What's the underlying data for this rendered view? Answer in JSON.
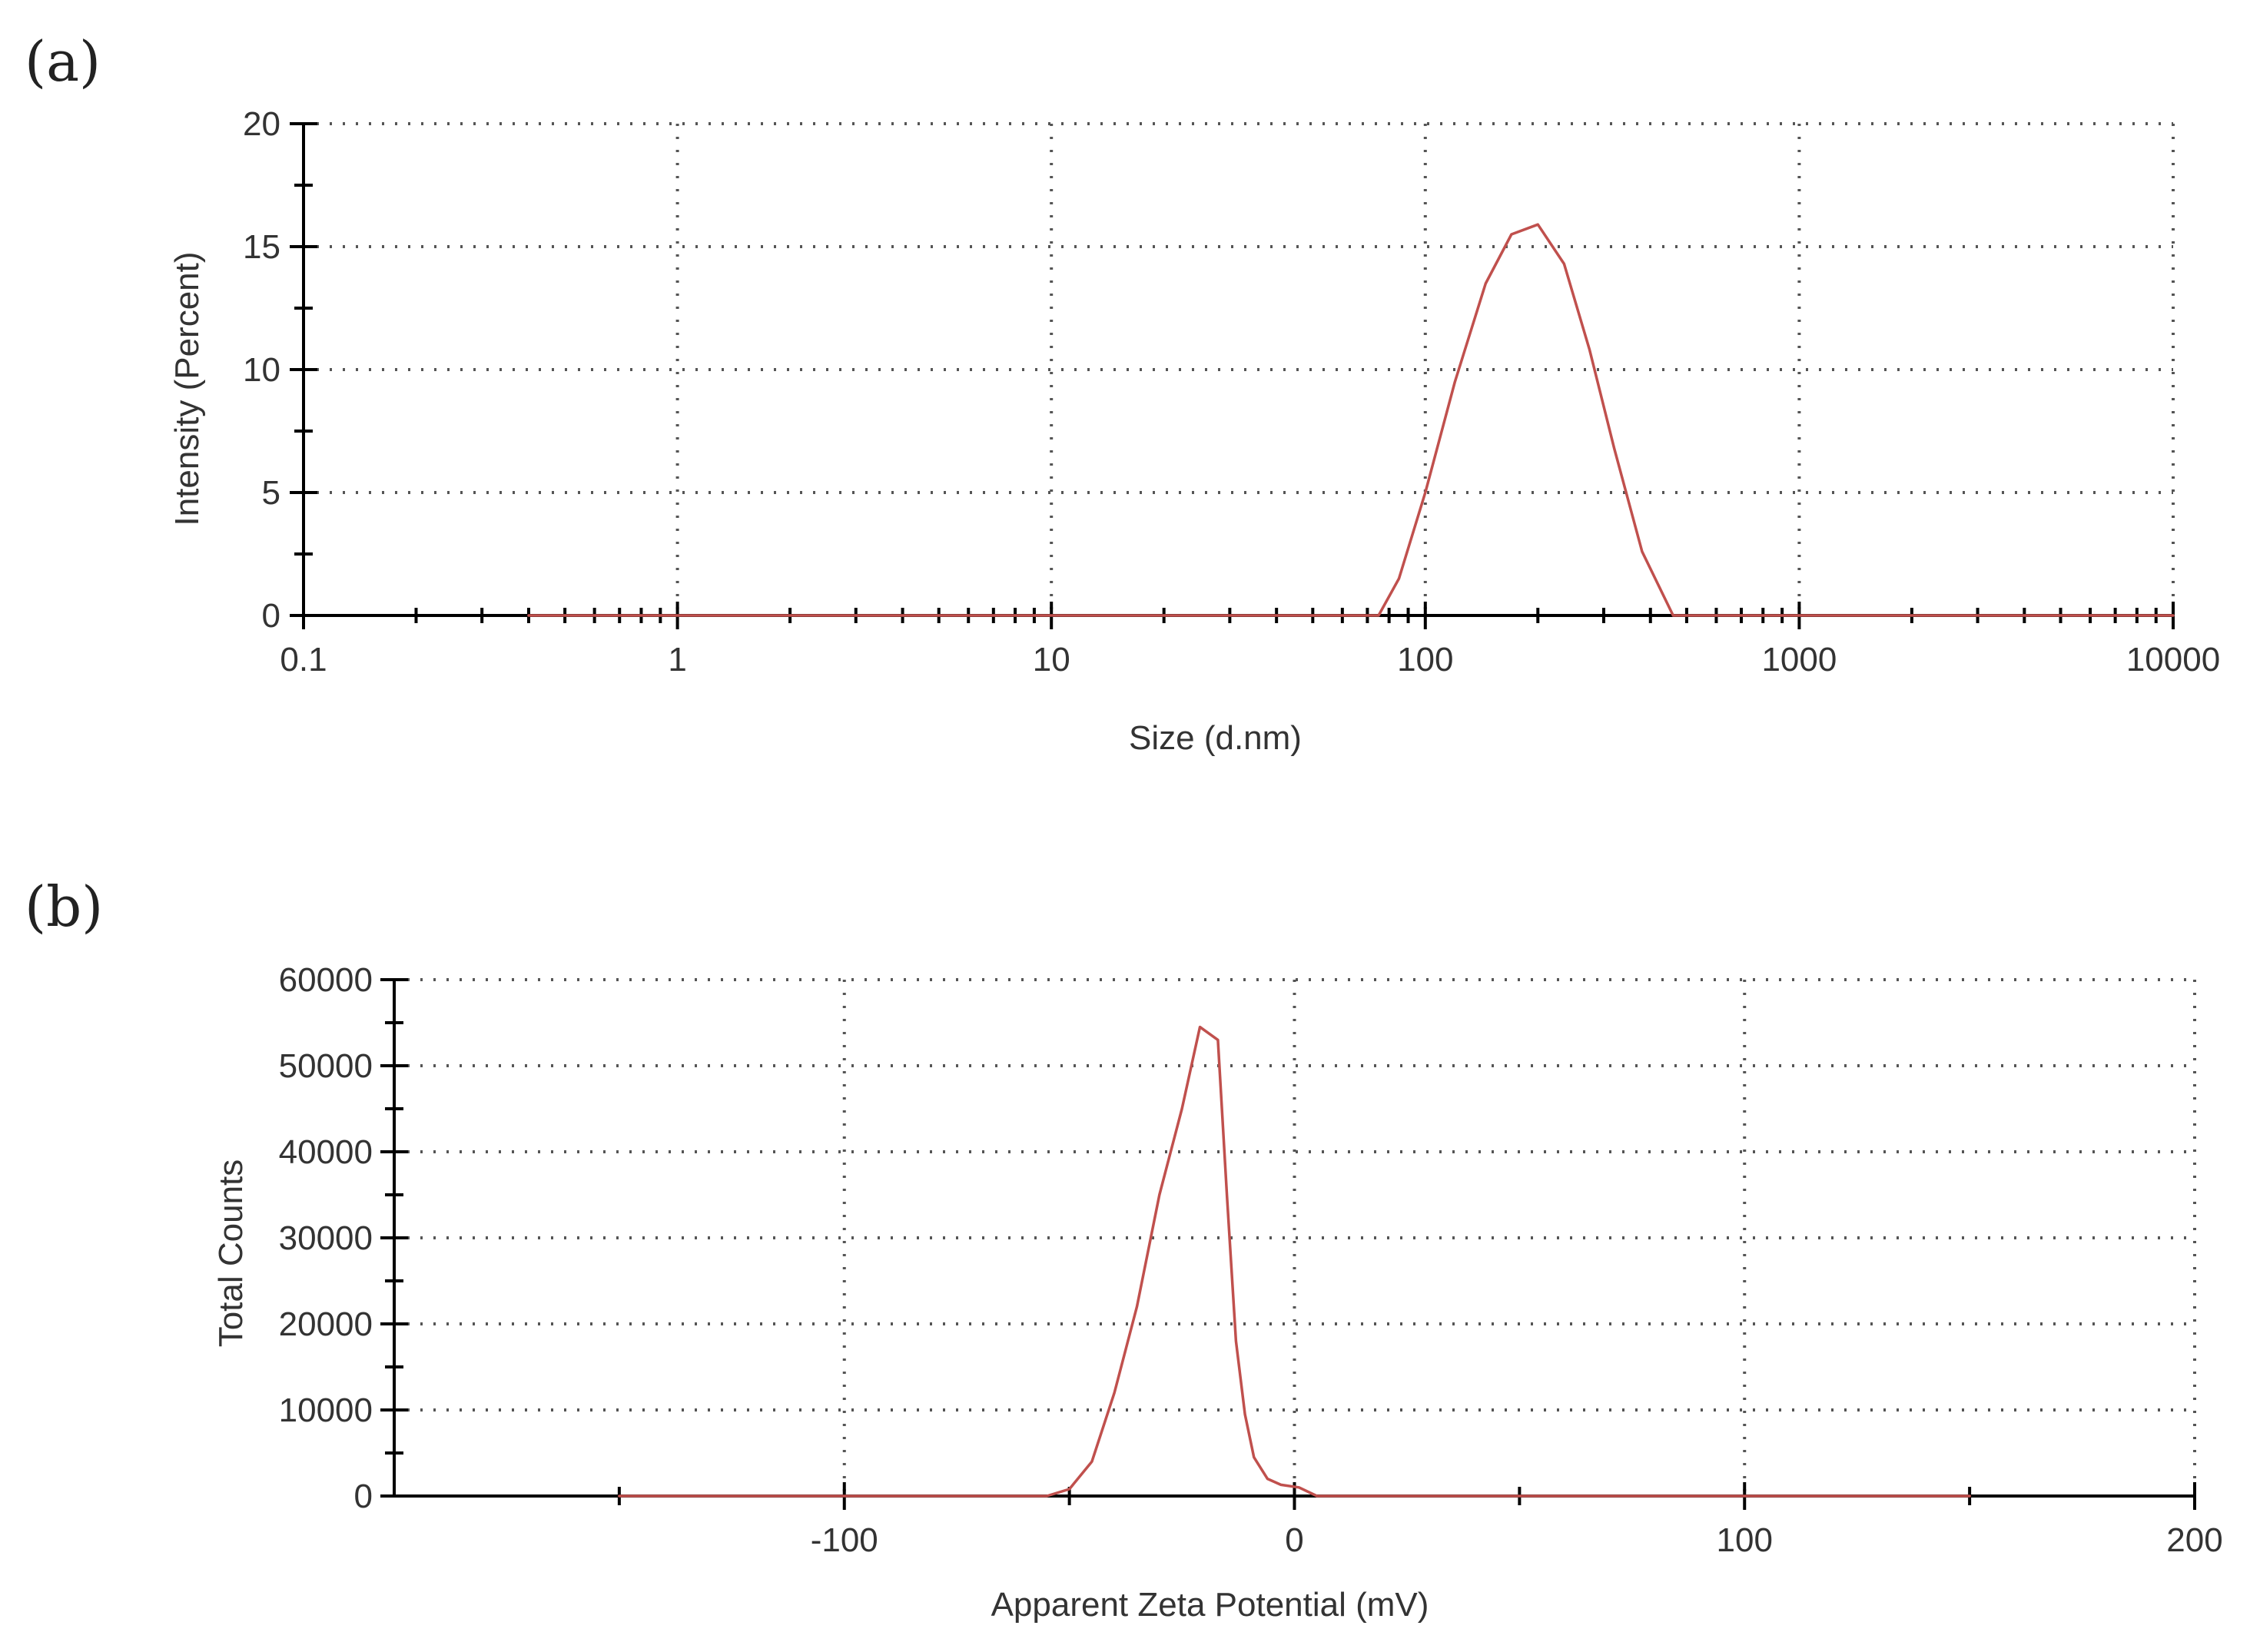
{
  "colors": {
    "series": "#c0504d",
    "axis": "#000000",
    "grid": "#555555",
    "text": "#333333"
  },
  "chart_data": [
    {
      "panel": "(a)",
      "type": "line",
      "title": "",
      "xlabel": "Size (d.nm)",
      "ylabel": "Intensity (Percent)",
      "xscale": "log",
      "xlim": [
        0.1,
        10000
      ],
      "ylim": [
        0,
        20
      ],
      "xticks": [
        0.1,
        1,
        10,
        100,
        1000,
        10000
      ],
      "xtick_labels": [
        "0.1",
        "1",
        "10",
        "100",
        "1000",
        "10000"
      ],
      "yticks": [
        0,
        5,
        10,
        15,
        20
      ],
      "ytick_labels": [
        "0",
        "5",
        "10",
        "15",
        "20"
      ],
      "grid": true,
      "legend": "none",
      "series": [
        {
          "x": [
            0.4,
            50,
            75,
            85,
            100,
            120,
            145,
            170,
            200,
            235,
            275,
            320,
            380,
            460,
            1000,
            10000
          ],
          "y": [
            0,
            0,
            0,
            1.5,
            5,
            9.5,
            13.5,
            15.5,
            15.9,
            14.3,
            10.8,
            6.8,
            2.6,
            0,
            0,
            0
          ]
        }
      ]
    },
    {
      "panel": "(b)",
      "type": "line",
      "title": "",
      "xlabel": "Apparent Zeta Potential (mV)",
      "ylabel": "Total Counts",
      "xscale": "linear",
      "xlim": [
        -200,
        200
      ],
      "ylim": [
        0,
        60000
      ],
      "xticks": [
        -100,
        0,
        100,
        200
      ],
      "xtick_labels": [
        "-100",
        "0",
        "100",
        "200"
      ],
      "yticks": [
        0,
        10000,
        20000,
        30000,
        40000,
        50000,
        60000
      ],
      "ytick_labels": [
        "0",
        "10000",
        "20000",
        "30000",
        "40000",
        "50000",
        "60000"
      ],
      "grid": true,
      "legend": "none",
      "series": [
        {
          "x": [
            -150,
            -55,
            -50,
            -45,
            -40,
            -35,
            -30,
            -25,
            -21,
            -17,
            -15,
            -13,
            -11,
            -9,
            -6,
            -3,
            1,
            5,
            150
          ],
          "y": [
            0,
            0,
            800,
            4000,
            12000,
            22000,
            35000,
            45000,
            54500,
            53000,
            35000,
            18000,
            9500,
            4500,
            2000,
            1300,
            1000,
            0,
            0
          ]
        }
      ]
    }
  ]
}
